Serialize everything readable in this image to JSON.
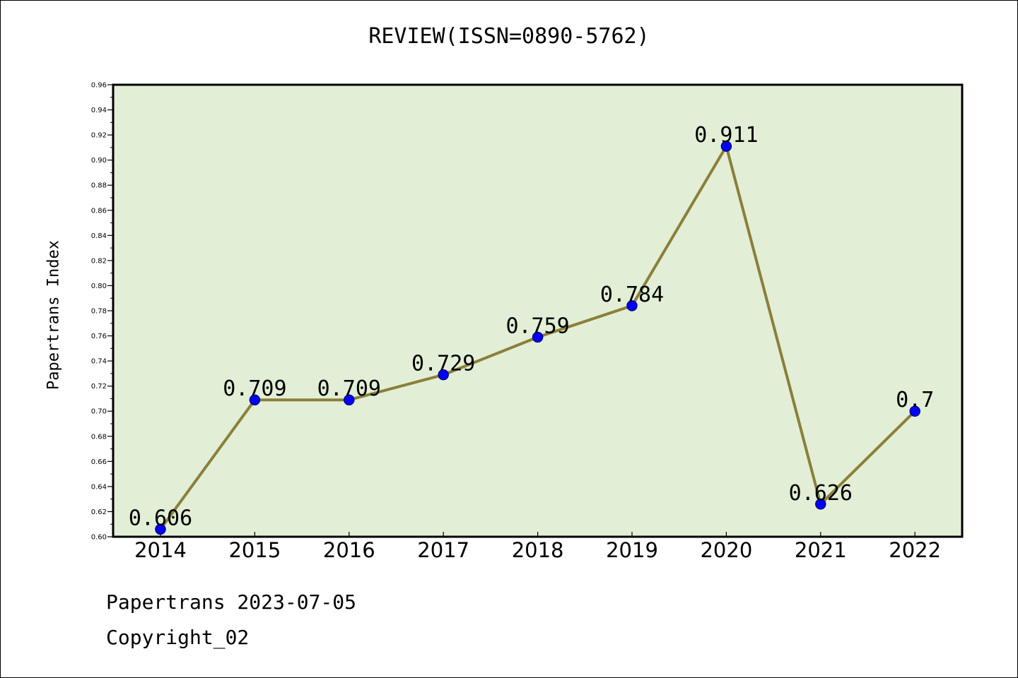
{
  "chart_data": {
    "type": "line",
    "title": "REVIEW(ISSN=0890-5762)",
    "ylabel": "Papertrans Index",
    "xlabel": "",
    "categories": [
      "2014",
      "2015",
      "2016",
      "2017",
      "2018",
      "2019",
      "2020",
      "2021",
      "2022"
    ],
    "series": [
      {
        "values": [
          0.606,
          0.709,
          0.709,
          0.729,
          0.759,
          0.784,
          0.911,
          0.626,
          0.7
        ]
      }
    ],
    "data_labels": [
      "0.606",
      "0.709",
      "0.709",
      "0.729",
      "0.759",
      "0.784",
      "0.911",
      "0.626",
      "0.7"
    ],
    "ylim": [
      0.6,
      0.96
    ],
    "yticks": [
      "0.60",
      "0.62",
      "0.64",
      "0.66",
      "0.68",
      "0.70",
      "0.72",
      "0.74",
      "0.76",
      "0.78",
      "0.80",
      "0.82",
      "0.84",
      "0.86",
      "0.88",
      "0.90",
      "0.92",
      "0.94",
      "0.96"
    ],
    "grid": false,
    "colors": {
      "plot_background": "#e2efd6",
      "line": "#8b7f3a",
      "marker": "#0000ff",
      "marker_edge": "#00008b"
    }
  },
  "footer": {
    "line1": "Papertrans 2023-07-05",
    "line2": "Copyright_02"
  }
}
